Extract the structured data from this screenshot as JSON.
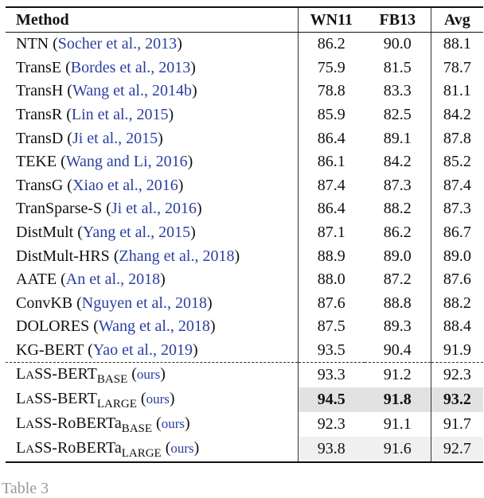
{
  "header": {
    "method": "Method",
    "wn11": "WN11",
    "fb13": "FB13",
    "avg": "Avg"
  },
  "baselines": [
    {
      "name": "NTN",
      "cite": "Socher et al., 2013",
      "wn11": "86.2",
      "fb13": "90.0",
      "avg": "88.1"
    },
    {
      "name": "TransE",
      "cite": "Bordes et al., 2013",
      "wn11": "75.9",
      "fb13": "81.5",
      "avg": "78.7"
    },
    {
      "name": "TransH",
      "cite": "Wang et al., 2014b",
      "wn11": "78.8",
      "fb13": "83.3",
      "avg": "81.1"
    },
    {
      "name": "TransR",
      "cite": "Lin et al., 2015",
      "wn11": "85.9",
      "fb13": "82.5",
      "avg": "84.2"
    },
    {
      "name": "TransD",
      "cite": "Ji et al., 2015",
      "wn11": "86.4",
      "fb13": "89.1",
      "avg": "87.8"
    },
    {
      "name": "TEKE",
      "cite": "Wang and Li, 2016",
      "wn11": "86.1",
      "fb13": "84.2",
      "avg": "85.2"
    },
    {
      "name": "TransG",
      "cite": "Xiao et al., 2016",
      "wn11": "87.4",
      "fb13": "87.3",
      "avg": "87.4"
    },
    {
      "name": "TranSparse-S",
      "cite": "Ji et al., 2016",
      "wn11": "86.4",
      "fb13": "88.2",
      "avg": "87.3"
    },
    {
      "name": "DistMult",
      "cite": "Yang et al., 2015",
      "wn11": "87.1",
      "fb13": "86.2",
      "avg": "86.7"
    },
    {
      "name": "DistMult-HRS",
      "cite": "Zhang et al., 2018",
      "wn11": "88.9",
      "fb13": "89.0",
      "avg": "89.0"
    },
    {
      "name": "AATE",
      "cite": "An et al., 2018",
      "wn11": "88.0",
      "fb13": "87.2",
      "avg": "87.6"
    },
    {
      "name": "ConvKB",
      "cite": "Nguyen et al., 2018",
      "wn11": "87.6",
      "fb13": "88.8",
      "avg": "88.2"
    },
    {
      "name": "DOLORES",
      "cite": "Wang et al., 2018",
      "wn11": "87.5",
      "fb13": "89.3",
      "avg": "88.4"
    },
    {
      "name": "KG-BERT",
      "cite": "Yao et al., 2019",
      "wn11": "93.5",
      "fb13": "90.4",
      "avg": "91.9"
    }
  ],
  "ours": [
    {
      "l": "L",
      "sc": "A",
      "rest": "SS-BERT",
      "sub": "BASE",
      "tag": "ours",
      "wn11": "93.3",
      "fb13": "91.2",
      "avg": "92.3"
    },
    {
      "l": "L",
      "sc": "A",
      "rest": "SS-BERT",
      "sub": "LARGE",
      "tag": "ours",
      "wn11": "94.5",
      "fb13": "91.8",
      "avg": "93.2"
    },
    {
      "l": "L",
      "sc": "A",
      "rest": "SS-RoBERTa",
      "sub": "BASE",
      "tag": "ours",
      "wn11": "92.3",
      "fb13": "91.1",
      "avg": "91.7"
    },
    {
      "l": "L",
      "sc": "A",
      "rest": "SS-RoBERTa",
      "sub": "LARGE",
      "tag": "ours",
      "wn11": "93.8",
      "fb13": "91.6",
      "avg": "92.7"
    }
  ],
  "caption": "Table 3",
  "colors": {
    "citation": "#2a3fa0",
    "best_highlight": "#e2e2e2",
    "second_highlight": "#f0f0f0"
  }
}
